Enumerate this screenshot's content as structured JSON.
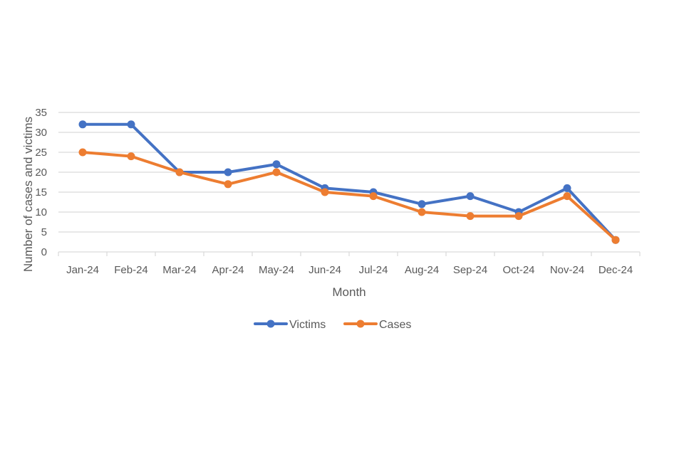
{
  "chart_data": {
    "type": "line",
    "title": "",
    "xlabel": "Month",
    "ylabel": "Number of cases and victims",
    "ylim": [
      0,
      35
    ],
    "yticks": [
      0,
      5,
      10,
      15,
      20,
      25,
      30,
      35
    ],
    "categories": [
      "Jan-24",
      "Feb-24",
      "Mar-24",
      "Apr-24",
      "May-24",
      "Jun-24",
      "Jul-24",
      "Aug-24",
      "Sep-24",
      "Oct-24",
      "Nov-24",
      "Dec-24"
    ],
    "series": [
      {
        "name": "Victims",
        "color": "#4472C4",
        "values": [
          32,
          32,
          20,
          20,
          22,
          16,
          15,
          12,
          14,
          10,
          16,
          3
        ]
      },
      {
        "name": "Cases",
        "color": "#ED7D31",
        "values": [
          25,
          24,
          20,
          17,
          20,
          15,
          14,
          10,
          9,
          9,
          14,
          3
        ]
      }
    ],
    "grid": true,
    "legend_position": "bottom"
  }
}
